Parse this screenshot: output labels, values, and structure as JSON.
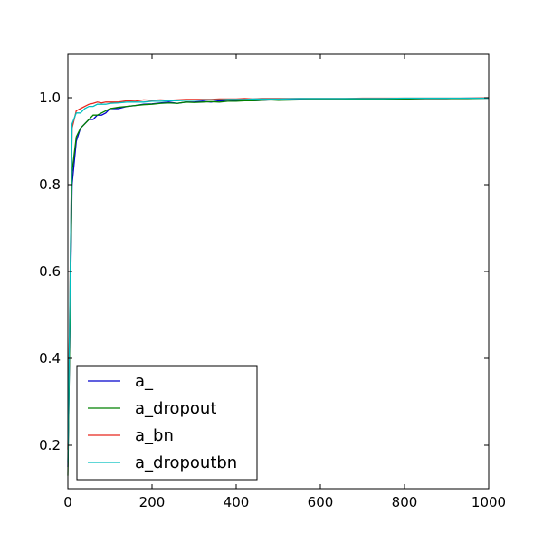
{
  "chart_data": {
    "type": "line",
    "title": "",
    "xlabel": "",
    "ylabel": "",
    "xlim": [
      0,
      1000
    ],
    "ylim": [
      0.1,
      1.1
    ],
    "x_ticks": [
      0,
      200,
      400,
      600,
      800,
      1000
    ],
    "x_tick_labels": [
      "0",
      "200",
      "400",
      "600",
      "800",
      "1000"
    ],
    "y_ticks": [
      0.2,
      0.4,
      0.6,
      0.8,
      1.0
    ],
    "y_tick_labels": [
      "0.2",
      "0.4",
      "0.6",
      "0.8",
      "1.0"
    ],
    "grid": false,
    "legend_position": "lower-left",
    "x": [
      0,
      10,
      20,
      30,
      40,
      50,
      60,
      70,
      80,
      90,
      100,
      120,
      140,
      160,
      180,
      200,
      220,
      240,
      260,
      280,
      300,
      320,
      340,
      360,
      380,
      400,
      420,
      440,
      460,
      480,
      500,
      550,
      600,
      650,
      700,
      750,
      800,
      850,
      900,
      950,
      1000
    ],
    "series": [
      {
        "name": "a_",
        "color": "#0000cc",
        "values": [
          0.15,
          0.8,
          0.9,
          0.93,
          0.94,
          0.95,
          0.95,
          0.96,
          0.96,
          0.965,
          0.975,
          0.975,
          0.98,
          0.982,
          0.985,
          0.986,
          0.988,
          0.99,
          0.987,
          0.99,
          0.99,
          0.992,
          0.99,
          0.993,
          0.992,
          0.993,
          0.994,
          0.993,
          0.994,
          0.995,
          0.995,
          0.996,
          0.996,
          0.997,
          0.997,
          0.998,
          0.998,
          0.998,
          0.998,
          0.999,
          0.999
        ]
      },
      {
        "name": "a_dropout",
        "color": "#008000",
        "values": [
          0.13,
          0.83,
          0.91,
          0.93,
          0.94,
          0.95,
          0.96,
          0.96,
          0.965,
          0.97,
          0.975,
          0.978,
          0.98,
          0.982,
          0.984,
          0.985,
          0.987,
          0.988,
          0.987,
          0.99,
          0.989,
          0.99,
          0.991,
          0.99,
          0.992,
          0.992,
          0.993,
          0.993,
          0.994,
          0.995,
          0.994,
          0.995,
          0.996,
          0.996,
          0.997,
          0.997,
          0.997,
          0.998,
          0.998,
          0.998,
          0.999
        ]
      },
      {
        "name": "a_bn",
        "color": "#e8261c",
        "values": [
          0.19,
          0.93,
          0.97,
          0.975,
          0.98,
          0.985,
          0.987,
          0.99,
          0.988,
          0.99,
          0.99,
          0.99,
          0.993,
          0.992,
          0.995,
          0.994,
          0.995,
          0.994,
          0.995,
          0.996,
          0.996,
          0.996,
          0.996,
          0.997,
          0.997,
          0.997,
          0.998,
          0.997,
          0.998,
          0.998,
          0.998,
          0.998,
          0.998,
          0.998,
          0.999,
          0.999,
          0.999,
          0.999,
          0.999,
          0.999,
          1.0
        ]
      },
      {
        "name": "a_dropoutbn",
        "color": "#00bfbf",
        "values": [
          0.16,
          0.94,
          0.965,
          0.965,
          0.975,
          0.98,
          0.98,
          0.985,
          0.985,
          0.985,
          0.987,
          0.988,
          0.99,
          0.99,
          0.99,
          0.992,
          0.992,
          0.993,
          0.993,
          0.994,
          0.994,
          0.995,
          0.995,
          0.995,
          0.996,
          0.996,
          0.996,
          0.997,
          0.997,
          0.997,
          0.997,
          0.998,
          0.998,
          0.998,
          0.998,
          0.998,
          0.999,
          0.999,
          0.999,
          0.999,
          0.999
        ]
      }
    ]
  }
}
